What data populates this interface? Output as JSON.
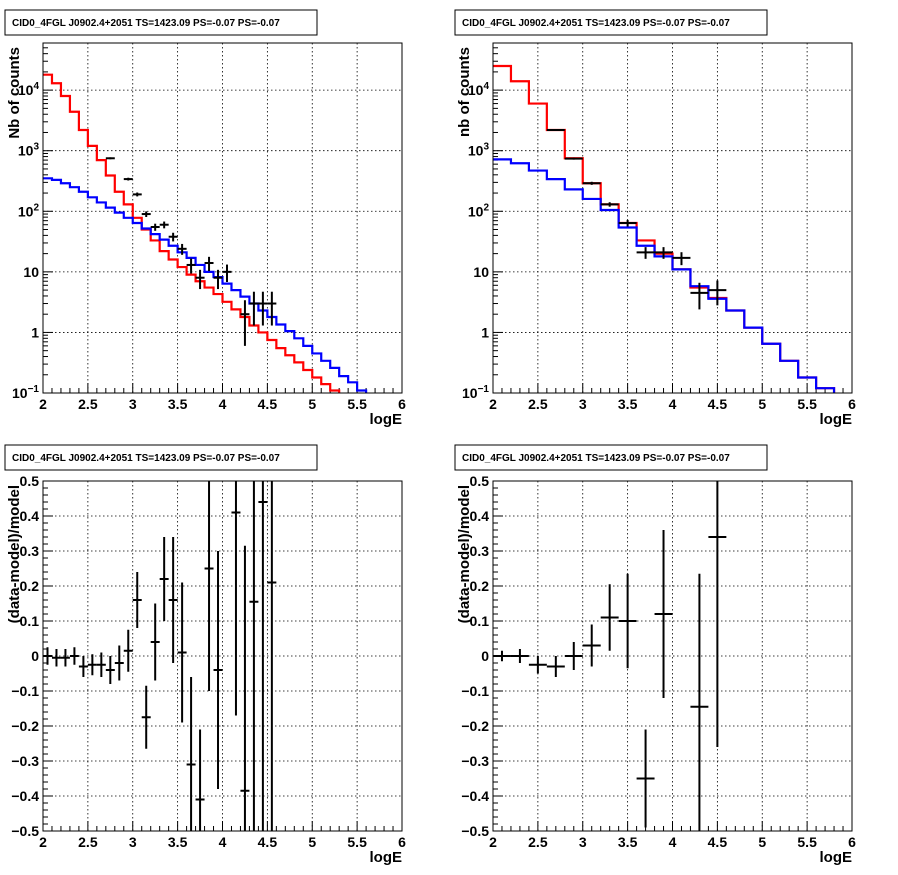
{
  "chart_data": [
    {
      "type": "line",
      "title": "CID0_4FGL J0902.4+2051 TS=1423.09 PS=-0.07 PS=-0.07",
      "xlabel": "logE",
      "ylabel": "Nb of counts",
      "log_y": true,
      "xlim": [
        2,
        6
      ],
      "ylim": [
        0.1,
        60000
      ],
      "grid": true,
      "x_ticks": [
        "2",
        "2.5",
        "3",
        "3.5",
        "4",
        "4.5",
        "5",
        "5.5",
        "6"
      ],
      "y_ticks": [
        "10^-1",
        "1",
        "10",
        "10^2",
        "10^3",
        "10^4"
      ],
      "bin_edges": [
        2,
        2.1,
        2.2,
        2.3,
        2.4,
        2.5,
        2.6,
        2.7,
        2.8,
        2.9,
        3.0,
        3.1,
        3.2,
        3.3,
        3.4,
        3.5,
        3.6,
        3.7,
        3.8,
        3.9,
        4.0,
        4.1,
        4.2,
        4.3,
        4.4,
        4.5,
        4.6,
        4.7,
        4.8,
        4.9,
        5.0,
        5.1,
        5.2,
        5.3,
        5.4,
        5.5,
        5.6,
        5.7,
        5.8,
        5.9,
        6.0
      ],
      "series": [
        {
          "color": "#ff0000",
          "kind": "hist",
          "values": [
            18000,
            13000,
            8000,
            4400,
            2200,
            1200,
            700,
            390,
            210,
            130,
            78,
            50,
            33,
            22,
            16,
            12,
            9,
            7,
            5.5,
            4.3,
            3.2,
            2.4,
            1.8,
            1.3,
            1.0,
            0.75,
            0.55,
            0.42,
            0.32,
            0.24,
            0.18,
            0.14,
            0.11,
            0.09,
            0.08,
            0.08,
            0.08,
            0.08,
            0.08,
            0.08
          ]
        },
        {
          "color": "#0000ff",
          "kind": "hist",
          "values": [
            350,
            330,
            290,
            250,
            210,
            170,
            140,
            115,
            95,
            78,
            64,
            52,
            42,
            34,
            27,
            21,
            17,
            13,
            10,
            8.2,
            6.4,
            5.0,
            3.9,
            3.0,
            2.3,
            1.8,
            1.35,
            1.05,
            0.8,
            0.6,
            0.45,
            0.34,
            0.26,
            0.19,
            0.15,
            0.11,
            0.09,
            0.09,
            0.09,
            0.09
          ]
        },
        {
          "color": "#000000",
          "kind": "points",
          "x": [
            2.75,
            2.95,
            3.05,
            3.15,
            3.25,
            3.35,
            3.45,
            3.55,
            3.65,
            3.75,
            3.85,
            3.95,
            4.05,
            4.25,
            4.35,
            4.45,
            4.55
          ],
          "y": [
            750,
            340,
            190,
            90,
            55,
            60,
            38,
            24,
            13,
            8,
            14,
            8,
            10,
            2,
            3,
            3,
            3
          ],
          "yerr": [
            27,
            18,
            14,
            9.5,
            7.4,
            7.7,
            6.2,
            4.9,
            3.6,
            2.8,
            3.7,
            2.8,
            3.2,
            1.4,
            1.7,
            1.7,
            1.7
          ]
        }
      ]
    },
    {
      "type": "line",
      "title": "CID0_4FGL J0902.4+2051 TS=1423.09 PS=-0.07 PS=-0.07",
      "xlabel": "logE",
      "ylabel": "nb of counts",
      "log_y": true,
      "xlim": [
        2,
        6
      ],
      "ylim": [
        0.1,
        60000
      ],
      "grid": true,
      "x_ticks": [
        "2",
        "2.5",
        "3",
        "3.5",
        "4",
        "4.5",
        "5",
        "5.5",
        "6"
      ],
      "y_ticks": [
        "10^-1",
        "1",
        "10",
        "10^2",
        "10^3",
        "10^4"
      ],
      "bin_edges": [
        2,
        2.2,
        2.4,
        2.6,
        2.8,
        3.0,
        3.2,
        3.4,
        3.6,
        3.8,
        4.0,
        4.2,
        4.4,
        4.6,
        4.8,
        5.0,
        5.2,
        5.4,
        5.6,
        5.8,
        6.0
      ],
      "series": [
        {
          "color": "#ff0000",
          "kind": "hist",
          "values": [
            25000,
            14000,
            6000,
            2200,
            750,
            290,
            130,
            64,
            33,
            20,
            11,
            5.5,
            3.7,
            2.3,
            1.2,
            0.65,
            0.34,
            0.18,
            0.12,
            0.09
          ]
        },
        {
          "color": "#0000ff",
          "kind": "hist",
          "values": [
            720,
            620,
            470,
            340,
            230,
            160,
            105,
            54,
            27,
            18,
            11,
            5.8,
            3.6,
            2.3,
            1.2,
            0.65,
            0.34,
            0.18,
            0.12,
            0.09
          ]
        },
        {
          "color": "#000000",
          "kind": "points",
          "x": [
            2.7,
            2.9,
            3.1,
            3.3,
            3.5,
            3.7,
            3.9,
            4.1,
            4.3,
            4.5
          ],
          "y": [
            2200,
            740,
            290,
            130,
            64,
            21,
            21,
            17,
            4.5,
            5
          ],
          "yerr": [
            47,
            27,
            17,
            11,
            8,
            4.6,
            4.6,
            4.1,
            2.1,
            2.2
          ]
        }
      ]
    },
    {
      "type": "scatter",
      "title": "CID0_4FGL J0902.4+2051 TS=1423.09 PS=-0.07 PS=-0.07",
      "xlabel": "logE",
      "ylabel": "(data-model)/model",
      "log_y": false,
      "xlim": [
        2,
        6
      ],
      "ylim": [
        -0.5,
        0.5
      ],
      "grid": true,
      "x_ticks": [
        "2",
        "2.5",
        "3",
        "3.5",
        "4",
        "4.5",
        "5",
        "5.5",
        "6"
      ],
      "y_ticks": [
        "-0.5",
        "-0.4",
        "-0.3",
        "-0.2",
        "-0.1",
        "0",
        "0.1",
        "0.2",
        "0.3",
        "0.4",
        "0.5"
      ],
      "bin_width": 0.1,
      "x": [
        2.05,
        2.15,
        2.25,
        2.35,
        2.45,
        2.55,
        2.65,
        2.75,
        2.85,
        2.95,
        3.05,
        3.15,
        3.25,
        3.35,
        3.45,
        3.55,
        3.65,
        3.75,
        3.85,
        3.95,
        4.15,
        4.25,
        4.35,
        4.45,
        4.55
      ],
      "y": [
        0.0,
        -0.005,
        -0.005,
        0.0,
        -0.03,
        -0.025,
        -0.025,
        -0.04,
        -0.02,
        0.015,
        0.16,
        -0.175,
        0.04,
        0.22,
        0.16,
        0.01,
        -0.31,
        -0.41,
        0.25,
        -0.04,
        0.41,
        -0.385,
        0.155,
        0.44,
        0.21
      ],
      "yerr": [
        0.025,
        0.025,
        0.025,
        0.025,
        0.03,
        0.03,
        0.035,
        0.04,
        0.05,
        0.06,
        0.08,
        0.09,
        0.11,
        0.12,
        0.18,
        0.2,
        0.25,
        0.2,
        0.35,
        0.34,
        0.58,
        0.7,
        0.9,
        1.0,
        0.95
      ]
    },
    {
      "type": "scatter",
      "title": "CID0_4FGL J0902.4+2051 TS=1423.09 PS=-0.07 PS=-0.07",
      "xlabel": "logE",
      "ylabel": "(data-model)/model",
      "log_y": false,
      "xlim": [
        2,
        6
      ],
      "ylim": [
        -0.5,
        0.5
      ],
      "grid": true,
      "x_ticks": [
        "2",
        "2.5",
        "3",
        "3.5",
        "4",
        "4.5",
        "5",
        "5.5",
        "6"
      ],
      "y_ticks": [
        "-0.5",
        "-0.4",
        "-0.3",
        "-0.2",
        "-0.1",
        "0",
        "0.1",
        "0.2",
        "0.3",
        "0.4",
        "0.5"
      ],
      "bin_width": 0.2,
      "x": [
        2.1,
        2.3,
        2.5,
        2.7,
        2.9,
        3.1,
        3.3,
        3.5,
        3.7,
        3.9,
        4.3,
        4.5
      ],
      "y": [
        0.0,
        0.0,
        -0.025,
        -0.03,
        0.0,
        0.03,
        0.11,
        0.1,
        -0.35,
        0.12,
        -0.145,
        0.34
      ],
      "yerr": [
        0.015,
        0.02,
        0.025,
        0.03,
        0.04,
        0.06,
        0.095,
        0.135,
        0.14,
        0.24,
        0.38,
        0.6
      ]
    }
  ]
}
